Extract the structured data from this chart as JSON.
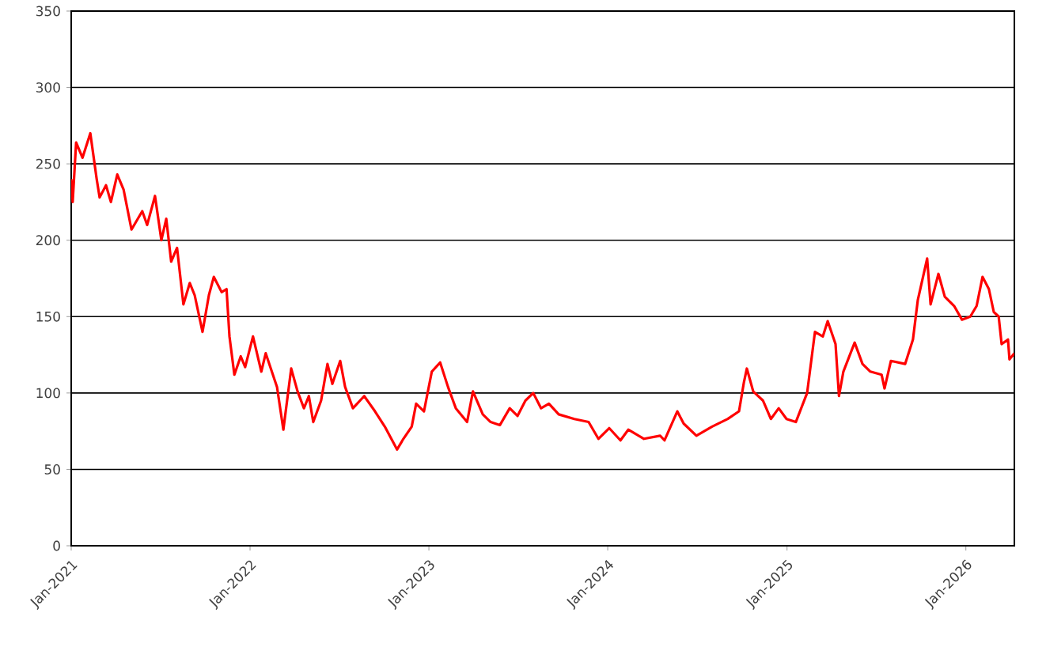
{
  "chart_data": {
    "type": "line",
    "x": [
      "2021-01-01",
      "2021-01-04",
      "2021-01-11",
      "2021-01-24",
      "2021-02-09",
      "2021-02-22",
      "2021-02-28",
      "2021-03-13",
      "2021-03-23",
      "2021-04-05",
      "2021-04-18",
      "2021-05-04",
      "2021-05-26",
      "2021-06-05",
      "2021-06-21",
      "2021-07-04",
      "2021-07-14",
      "2021-07-24",
      "2021-08-05",
      "2021-08-18",
      "2021-08-31",
      "2021-09-10",
      "2021-09-26",
      "2021-10-09",
      "2021-10-19",
      "2021-11-04",
      "2021-11-14",
      "2021-11-20",
      "2021-11-30",
      "2021-12-13",
      "2021-12-22",
      "2022-01-07",
      "2022-01-24",
      "2022-02-02",
      "2022-02-25",
      "2022-03-10",
      "2022-03-26",
      "2022-04-08",
      "2022-04-21",
      "2022-05-01",
      "2022-05-10",
      "2022-05-26",
      "2022-06-08",
      "2022-06-18",
      "2022-07-04",
      "2022-07-14",
      "2022-07-30",
      "2022-08-22",
      "2022-09-13",
      "2022-10-03",
      "2022-10-28",
      "2022-11-10",
      "2022-11-27",
      "2022-12-06",
      "2022-12-22",
      "2023-01-07",
      "2023-01-24",
      "2023-02-09",
      "2023-02-25",
      "2023-03-20",
      "2023-04-01",
      "2023-04-21",
      "2023-05-07",
      "2023-05-26",
      "2023-06-15",
      "2023-07-01",
      "2023-07-17",
      "2023-08-02",
      "2023-08-18",
      "2023-09-03",
      "2023-09-23",
      "2023-10-25",
      "2023-11-23",
      "2023-12-13",
      "2024-01-04",
      "2024-01-27",
      "2024-02-12",
      "2024-03-15",
      "2024-04-17",
      "2024-04-26",
      "2024-05-22",
      "2024-06-04",
      "2024-06-30",
      "2024-08-01",
      "2024-09-02",
      "2024-09-25",
      "2024-10-05",
      "2024-10-11",
      "2024-10-24",
      "2024-11-13",
      "2024-11-29",
      "2024-12-15",
      "2024-12-31",
      "2025-01-19",
      "2025-02-11",
      "2025-02-27",
      "2025-03-15",
      "2025-03-25",
      "2025-04-10",
      "2025-04-17",
      "2025-04-26",
      "2025-05-19",
      "2025-06-04",
      "2025-06-20",
      "2025-07-13",
      "2025-07-19",
      "2025-08-01",
      "2025-08-30",
      "2025-09-15",
      "2025-09-25",
      "2025-10-14",
      "2025-10-21",
      "2025-11-06",
      "2025-11-19",
      "2025-12-08",
      "2025-12-24",
      "2026-01-10",
      "2026-01-23",
      "2026-02-04",
      "2026-02-17",
      "2026-02-27",
      "2026-03-09",
      "2026-03-15",
      "2026-03-28",
      "2026-03-31",
      "2026-04-10"
    ],
    "series": [
      {
        "color": "#ff0000",
        "values": [
          240,
          225,
          264,
          254,
          270,
          240,
          228,
          236,
          225,
          243,
          233,
          207,
          219,
          210,
          229,
          200,
          214,
          186,
          195,
          158,
          172,
          164,
          140,
          164,
          176,
          166,
          168,
          137,
          112,
          124,
          117,
          137,
          114,
          126,
          104,
          76,
          116,
          101,
          90,
          98,
          81,
          95,
          119,
          106,
          121,
          104,
          90,
          98,
          88,
          78,
          63,
          70,
          78,
          93,
          88,
          114,
          120,
          104,
          90,
          81,
          101,
          86,
          81,
          79,
          90,
          85,
          95,
          100,
          90,
          93,
          86,
          83,
          81,
          70,
          77,
          69,
          76,
          70,
          72,
          69,
          88,
          80,
          72,
          78,
          83,
          88,
          107,
          116,
          101,
          95,
          83,
          90,
          83,
          81,
          100,
          140,
          137,
          147,
          132,
          98,
          114,
          133,
          119,
          114,
          112,
          103,
          121,
          119,
          135,
          161,
          188,
          158,
          178,
          163,
          157,
          148,
          150,
          157,
          176,
          168,
          153,
          150,
          132,
          135,
          122,
          126
        ]
      }
    ],
    "xlim": [
      "2021-01-01",
      "2026-04-10"
    ],
    "xticks": [
      {
        "value": "2021-01-01",
        "label": "Jan-2021"
      },
      {
        "value": "2022-01-01",
        "label": "Jan-2022"
      },
      {
        "value": "2023-01-01",
        "label": "Jan-2023"
      },
      {
        "value": "2024-01-01",
        "label": "Jan-2024"
      },
      {
        "value": "2025-01-01",
        "label": "Jan-2025"
      },
      {
        "value": "2026-01-01",
        "label": "Jan-2026"
      }
    ],
    "ylim": [
      0,
      350
    ],
    "yticks": [
      0,
      50,
      100,
      150,
      200,
      250,
      300,
      350
    ],
    "grid": "y",
    "marker": "none",
    "line_style": "solid"
  }
}
